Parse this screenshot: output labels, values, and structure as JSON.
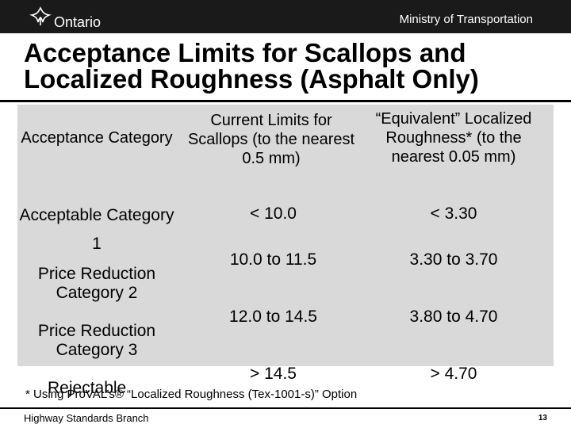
{
  "header": {
    "logo_text": "Ontario",
    "ministry": "Ministry of Transportation"
  },
  "title": "Acceptance Limits for Scallops and Localized Roughness (Asphalt Only)",
  "table": {
    "headers": [
      "Acceptance Category",
      "Current Limits for Scallops (to the nearest 0.5 mm)",
      "“Equivalent” Localized Roughness* (to the nearest 0.05 mm)"
    ],
    "rows": [
      {
        "category": "Acceptable Category 1",
        "scallops": "< 10.0",
        "roughness": "< 3.30"
      },
      {
        "category": "Price Reduction Category 2",
        "scallops": "10.0 to 11.5",
        "roughness": "3.30 to 3.70"
      },
      {
        "category": "Price Reduction Category 3",
        "scallops": "12.0 to 14.5",
        "roughness": "3.80 to 4.70"
      },
      {
        "category": "Rejectable",
        "scallops": "> 14.5",
        "roughness": "> 4.70"
      }
    ]
  },
  "footnote": "* Using ProVAL’s® “Localized Roughness  (Tex-1001-s)” Option",
  "footer": {
    "branch": "Highway Standards Branch",
    "slide_number": "13"
  },
  "colors": {
    "topbar": "#1a1a1a",
    "table_background": "#d9d9d9"
  }
}
